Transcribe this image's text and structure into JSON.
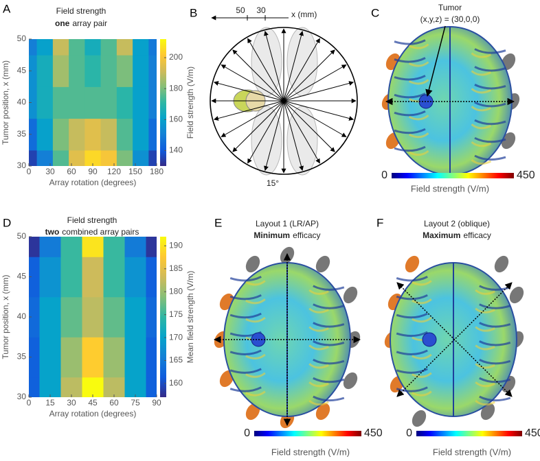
{
  "panel_letters": [
    "A",
    "B",
    "C",
    "D",
    "E",
    "F"
  ],
  "chart_data": [
    {
      "type": "heatmap",
      "title": "Field strength",
      "subtitle_bold": "one",
      "subtitle_rest": "array pair",
      "x_label": "Array rotation (degrees)",
      "y_label": "Tumor position, x (mm)",
      "colorbar_label": "Field strength (V/m)",
      "x": [
        0,
        22.5,
        45,
        67.5,
        90,
        112.5,
        135,
        157.5,
        180
      ],
      "y": [
        30,
        35,
        40,
        45,
        50
      ],
      "z": [
        [
          135,
          150,
          175,
          195,
          205,
          200,
          180,
          155,
          135
        ],
        [
          145,
          160,
          180,
          190,
          195,
          190,
          175,
          160,
          145
        ],
        [
          155,
          165,
          175,
          175,
          175,
          175,
          170,
          160,
          150
        ],
        [
          155,
          165,
          185,
          175,
          170,
          175,
          180,
          160,
          150
        ],
        [
          150,
          160,
          190,
          175,
          165,
          175,
          190,
          160,
          148
        ]
      ],
      "xlim": [
        0,
        180
      ],
      "ylim": [
        30,
        50
      ],
      "xticks": [
        0,
        30,
        60,
        90,
        120,
        150,
        180
      ],
      "yticks": [
        30,
        35,
        40,
        45,
        50
      ],
      "clim": [
        130,
        212
      ],
      "cticks": [
        140,
        160,
        180,
        200
      ],
      "colormap": [
        "#352a87",
        "#0f5cdd",
        "#1481d6",
        "#06a4ca",
        "#2eb7a4",
        "#87bf77",
        "#d1bb59",
        "#fec832",
        "#f9fb0e"
      ]
    },
    {
      "type": "heatmap",
      "title": "Field strength",
      "subtitle_bold": "two",
      "subtitle_rest": "combined array pairs",
      "x_label": "Array rotation (degrees)",
      "y_label": "Tumor position, x (mm)",
      "colorbar_label": "Mean field strength (V/m)",
      "x": [
        0,
        15,
        30,
        45,
        60,
        75,
        90
      ],
      "y": [
        30,
        35,
        40,
        45,
        50
      ],
      "z": [
        [
          162,
          170,
          182,
          192,
          182,
          170,
          162
        ],
        [
          162,
          170,
          180,
          188,
          180,
          170,
          162
        ],
        [
          163,
          170,
          177,
          182,
          177,
          170,
          163
        ],
        [
          162,
          168,
          175,
          183,
          175,
          168,
          162
        ],
        [
          158,
          165,
          175,
          190,
          175,
          165,
          158
        ]
      ],
      "xlim": [
        0,
        90
      ],
      "ylim": [
        30,
        50
      ],
      "xticks": [
        0,
        15,
        30,
        45,
        60,
        75,
        90
      ],
      "yticks": [
        30,
        35,
        40,
        45,
        50
      ],
      "clim": [
        157,
        192
      ],
      "cticks": [
        160,
        165,
        170,
        175,
        180,
        185,
        190
      ],
      "colormap": [
        "#352a87",
        "#0f5cdd",
        "#1481d6",
        "#06a4ca",
        "#2eb7a4",
        "#87bf77",
        "#d1bb59",
        "#fec832",
        "#f9fb0e"
      ]
    }
  ],
  "diagram": {
    "axis_ticks": [
      50,
      30
    ],
    "axis_label": "x (mm)",
    "angle_label": "15°"
  },
  "brain_panels": {
    "tumor_label": "Tumor",
    "tumor_coords": "(x,y,z) = (30,0,0)",
    "layout1": "Layout 1 (LR/AP)",
    "layout1_bold": "Minimum",
    "layout1_rest": "efficacy",
    "layout2": "Layout 2 (oblique)",
    "layout2_bold": "Maximum",
    "layout2_rest": "efficacy",
    "colorbar": {
      "ticks": [
        0,
        450
      ],
      "label": "Field strength (V/m)",
      "colormap": [
        "#00007f",
        "#0000ff",
        "#0080ff",
        "#00ffff",
        "#80ff80",
        "#ffff00",
        "#ff8000",
        "#ff0000",
        "#7f0000"
      ]
    }
  }
}
